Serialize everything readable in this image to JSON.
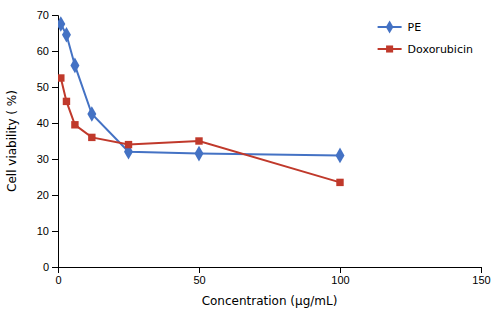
{
  "chart_data": {
    "type": "line",
    "x": [
      1,
      3,
      6,
      12,
      25,
      50,
      100
    ],
    "series": [
      {
        "name": "PE",
        "color": "#4472C4",
        "marker": "diamond",
        "values": [
          67.5,
          64.5,
          56,
          42.5,
          32,
          31.5,
          31
        ]
      },
      {
        "name": "Doxorubicin",
        "color": "#C0392B",
        "marker": "square",
        "values": [
          52.5,
          46,
          39.5,
          36,
          34,
          35,
          23.5
        ]
      }
    ],
    "x_label": "Concentration (μg/mL)",
    "y_label": "Cell viability ( %)",
    "xlim": [
      0,
      150
    ],
    "ylim": [
      0,
      70
    ],
    "xticks": [
      0,
      50,
      100,
      150
    ],
    "yticks": [
      0,
      10,
      20,
      30,
      40,
      50,
      60,
      70
    ],
    "grid": false,
    "legend": "upper-right"
  }
}
